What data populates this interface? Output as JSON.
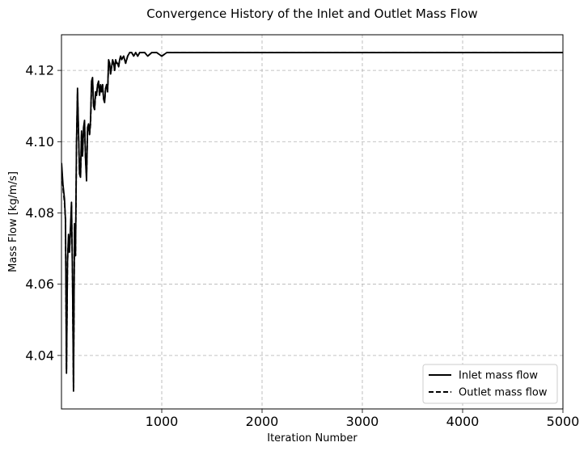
{
  "chart_data": {
    "type": "line",
    "title": "Convergence History of the Inlet and Outlet Mass Flow",
    "xlabel": "Iteration Number",
    "ylabel": "Mass Flow [kg/m/s]",
    "xlim": [
      0,
      5000
    ],
    "ylim": [
      4.025,
      4.13
    ],
    "xticks": [
      1000,
      2000,
      3000,
      4000,
      5000
    ],
    "yticks": [
      4.04,
      4.06,
      4.08,
      4.1,
      4.12
    ],
    "xtick_labels": [
      "1000",
      "2000",
      "3000",
      "4000",
      "5000"
    ],
    "ytick_labels": [
      "4.04",
      "4.06",
      "4.08",
      "4.10",
      "4.12"
    ],
    "grid": true,
    "legend_position": "bottom-right",
    "series": [
      {
        "name": "Inlet mass flow",
        "style": "solid",
        "color": "#000000",
        "x": [
          1,
          15,
          30,
          40,
          50,
          60,
          70,
          80,
          90,
          100,
          110,
          120,
          130,
          140,
          150,
          160,
          170,
          180,
          190,
          200,
          210,
          220,
          230,
          240,
          250,
          260,
          270,
          280,
          290,
          300,
          310,
          320,
          330,
          340,
          350,
          360,
          370,
          380,
          390,
          400,
          410,
          420,
          430,
          440,
          450,
          460,
          470,
          480,
          490,
          500,
          510,
          520,
          530,
          540,
          550,
          560,
          570,
          580,
          590,
          600,
          620,
          640,
          660,
          680,
          700,
          720,
          740,
          760,
          780,
          800,
          830,
          860,
          900,
          950,
          1000,
          1050,
          1100,
          1150,
          1200,
          1300,
          1400,
          1500,
          1600,
          1700,
          1800,
          1900,
          2000,
          2200,
          2400,
          2600,
          2800,
          3000,
          3500,
          4000,
          4500,
          5000
        ],
        "y": [
          4.094,
          4.088,
          4.084,
          4.078,
          4.035,
          4.066,
          4.074,
          4.069,
          4.076,
          4.083,
          4.062,
          4.03,
          4.077,
          4.068,
          4.1,
          4.115,
          4.103,
          4.091,
          4.09,
          4.103,
          4.096,
          4.104,
          4.106,
          4.095,
          4.089,
          4.104,
          4.105,
          4.102,
          4.106,
          4.117,
          4.118,
          4.11,
          4.109,
          4.114,
          4.113,
          4.116,
          4.117,
          4.113,
          4.116,
          4.114,
          4.116,
          4.112,
          4.111,
          4.115,
          4.116,
          4.114,
          4.123,
          4.122,
          4.119,
          4.121,
          4.123,
          4.122,
          4.12,
          4.123,
          4.122,
          4.122,
          4.121,
          4.123,
          4.124,
          4.123,
          4.124,
          4.122,
          4.124,
          4.125,
          4.125,
          4.124,
          4.125,
          4.124,
          4.125,
          4.125,
          4.125,
          4.124,
          4.125,
          4.125,
          4.124,
          4.125,
          4.125,
          4.125,
          4.125,
          4.125,
          4.125,
          4.125,
          4.125,
          4.125,
          4.125,
          4.125,
          4.125,
          4.125,
          4.125,
          4.125,
          4.125,
          4.125,
          4.125,
          4.125,
          4.125,
          4.125
        ]
      },
      {
        "name": "Outlet mass flow",
        "style": "dashed",
        "color": "#000000",
        "x": [
          1,
          15,
          30,
          40,
          50,
          60,
          70,
          80,
          90,
          100,
          110,
          120,
          130,
          140,
          150,
          160,
          170,
          180,
          190,
          200,
          210,
          220,
          230,
          240,
          250,
          260,
          270,
          280,
          290,
          300,
          310,
          320,
          330,
          340,
          350,
          360,
          370,
          380,
          390,
          400,
          410,
          420,
          430,
          440,
          450,
          460,
          470,
          480,
          490,
          500,
          510,
          520,
          530,
          540,
          550,
          560,
          570,
          580,
          590,
          600,
          620,
          640,
          660,
          680,
          700,
          720,
          740,
          760,
          780,
          800,
          830,
          860,
          900,
          950,
          1000,
          1050,
          1100,
          1150,
          1200,
          1300,
          1400,
          1500,
          1600,
          1700,
          1800,
          1900,
          2000,
          2200,
          2400,
          2600,
          2800,
          3000,
          3500,
          4000,
          4500,
          5000
        ],
        "y": [
          4.093,
          4.087,
          4.083,
          4.078,
          4.036,
          4.066,
          4.073,
          4.069,
          4.075,
          4.082,
          4.063,
          4.031,
          4.076,
          4.068,
          4.099,
          4.114,
          4.102,
          4.091,
          4.09,
          4.102,
          4.096,
          4.103,
          4.105,
          4.095,
          4.09,
          4.103,
          4.104,
          4.102,
          4.105,
          4.116,
          4.117,
          4.11,
          4.109,
          4.113,
          4.113,
          4.116,
          4.116,
          4.113,
          4.115,
          4.114,
          4.116,
          4.112,
          4.111,
          4.115,
          4.116,
          4.114,
          4.122,
          4.122,
          4.119,
          4.121,
          4.122,
          4.122,
          4.12,
          4.123,
          4.122,
          4.122,
          4.121,
          4.123,
          4.124,
          4.123,
          4.124,
          4.122,
          4.124,
          4.125,
          4.125,
          4.124,
          4.125,
          4.124,
          4.125,
          4.125,
          4.125,
          4.124,
          4.125,
          4.125,
          4.124,
          4.125,
          4.125,
          4.125,
          4.125,
          4.125,
          4.125,
          4.125,
          4.125,
          4.125,
          4.125,
          4.125,
          4.125,
          4.125,
          4.125,
          4.125,
          4.125,
          4.125,
          4.125,
          4.125,
          4.125,
          4.125
        ]
      }
    ]
  }
}
